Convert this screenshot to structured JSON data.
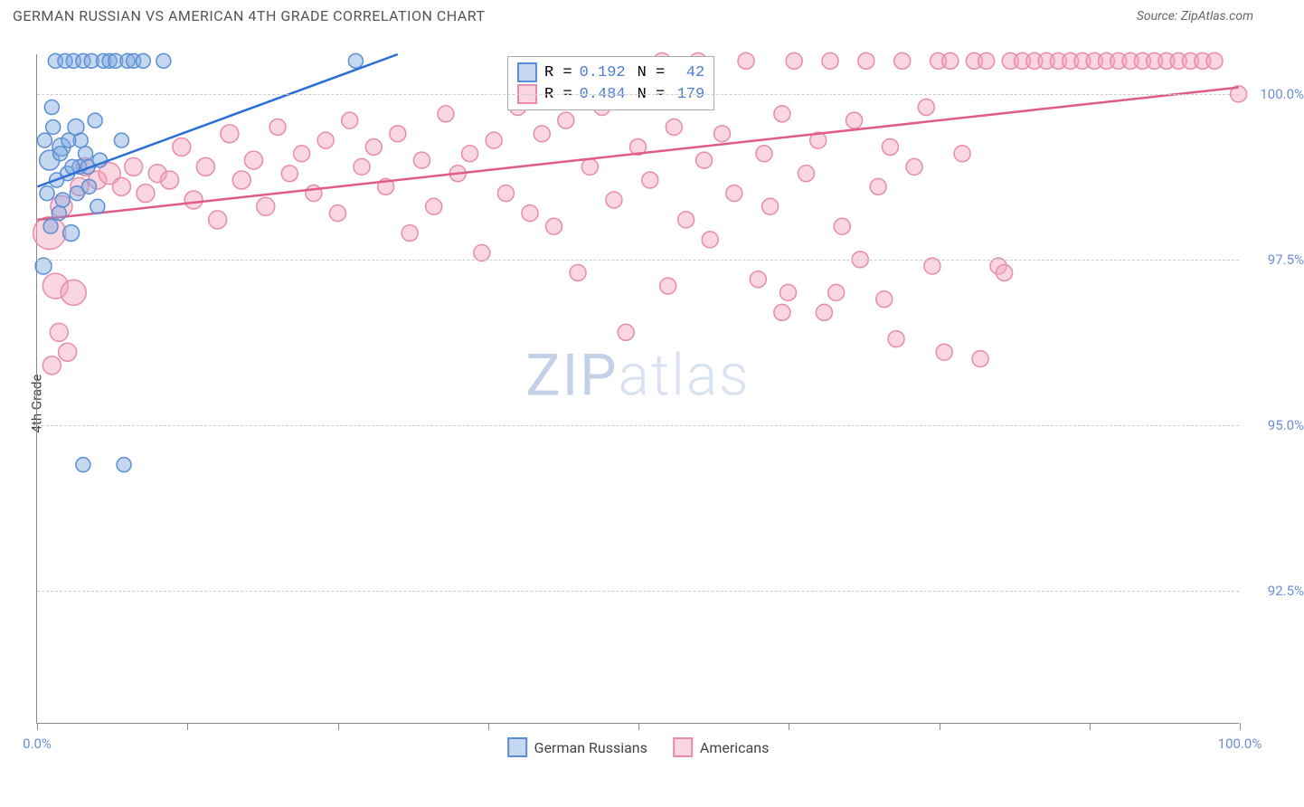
{
  "header": {
    "title": "GERMAN RUSSIAN VS AMERICAN 4TH GRADE CORRELATION CHART",
    "source": "Source: ZipAtlas.com"
  },
  "watermark": {
    "bold": "ZIP",
    "light": "atlas"
  },
  "chart": {
    "type": "scatter",
    "ylabel": "4th Grade",
    "xlim": [
      0,
      100
    ],
    "ylim": [
      90.5,
      100.6
    ],
    "background_color": "#ffffff",
    "grid_color": "#cccccc",
    "axis_color": "#888888",
    "ytick_label_color": "#6b8fd4",
    "xtick_label_color": "#6b8fd4",
    "yticks": [
      {
        "v": 92.5,
        "label": "92.5%"
      },
      {
        "v": 95.0,
        "label": "95.0%"
      },
      {
        "v": 97.5,
        "label": "97.5%"
      },
      {
        "v": 100.0,
        "label": "100.0%"
      }
    ],
    "xticks_minor": [
      0,
      12.5,
      25,
      37.5,
      50,
      62.5,
      75,
      87.5,
      100
    ],
    "xticks_labeled": [
      {
        "v": 0,
        "label": "0.0%"
      },
      {
        "v": 100,
        "label": "100.0%"
      }
    ],
    "series": {
      "gr": {
        "label": "German Russians",
        "marker_stroke": "#5a8fd6",
        "marker_fill": "rgba(126,169,222,0.45)",
        "line_color": "#2a6fd6",
        "line_width": 2.5,
        "R": "0.192",
        "N": "42",
        "trend": {
          "x1": 0,
          "y1": 98.6,
          "x2": 30,
          "y2": 100.6
        },
        "points": [
          {
            "x": 0.5,
            "y": 97.4,
            "r": 9
          },
          {
            "x": 0.8,
            "y": 98.5,
            "r": 8
          },
          {
            "x": 1.0,
            "y": 99.0,
            "r": 11
          },
          {
            "x": 1.2,
            "y": 99.8,
            "r": 8
          },
          {
            "x": 1.5,
            "y": 100.5,
            "r": 8
          },
          {
            "x": 1.8,
            "y": 98.2,
            "r": 8
          },
          {
            "x": 2.0,
            "y": 99.2,
            "r": 10
          },
          {
            "x": 2.3,
            "y": 100.5,
            "r": 8
          },
          {
            "x": 2.5,
            "y": 98.8,
            "r": 8
          },
          {
            "x": 2.8,
            "y": 97.9,
            "r": 9
          },
          {
            "x": 3.0,
            "y": 100.5,
            "r": 8
          },
          {
            "x": 3.2,
            "y": 99.5,
            "r": 9
          },
          {
            "x": 3.5,
            "y": 98.9,
            "r": 8
          },
          {
            "x": 3.8,
            "y": 100.5,
            "r": 8
          },
          {
            "x": 4.0,
            "y": 99.1,
            "r": 8
          },
          {
            "x": 4.3,
            "y": 98.6,
            "r": 8
          },
          {
            "x": 4.5,
            "y": 100.5,
            "r": 8
          },
          {
            "x": 4.8,
            "y": 99.6,
            "r": 8
          },
          {
            "x": 5.0,
            "y": 98.3,
            "r": 8
          },
          {
            "x": 5.5,
            "y": 100.5,
            "r": 8
          },
          {
            "x": 6.0,
            "y": 100.5,
            "r": 8
          },
          {
            "x": 6.5,
            "y": 100.5,
            "r": 8
          },
          {
            "x": 7.0,
            "y": 99.3,
            "r": 8
          },
          {
            "x": 7.5,
            "y": 100.5,
            "r": 8
          },
          {
            "x": 8.0,
            "y": 100.5,
            "r": 8
          },
          {
            "x": 8.8,
            "y": 100.5,
            "r": 8
          },
          {
            "x": 10.5,
            "y": 100.5,
            "r": 8
          },
          {
            "x": 3.8,
            "y": 94.4,
            "r": 8
          },
          {
            "x": 7.2,
            "y": 94.4,
            "r": 8
          },
          {
            "x": 0.6,
            "y": 99.3,
            "r": 8
          },
          {
            "x": 1.1,
            "y": 98.0,
            "r": 8
          },
          {
            "x": 1.3,
            "y": 99.5,
            "r": 8
          },
          {
            "x": 1.6,
            "y": 98.7,
            "r": 8
          },
          {
            "x": 1.9,
            "y": 99.1,
            "r": 8
          },
          {
            "x": 2.1,
            "y": 98.4,
            "r": 8
          },
          {
            "x": 2.6,
            "y": 99.3,
            "r": 8
          },
          {
            "x": 2.9,
            "y": 98.9,
            "r": 8
          },
          {
            "x": 3.3,
            "y": 98.5,
            "r": 8
          },
          {
            "x": 3.6,
            "y": 99.3,
            "r": 8
          },
          {
            "x": 4.2,
            "y": 98.9,
            "r": 8
          },
          {
            "x": 5.2,
            "y": 99.0,
            "r": 8
          },
          {
            "x": 26.5,
            "y": 100.5,
            "r": 8
          }
        ]
      },
      "am": {
        "label": "Americans",
        "marker_stroke": "#e88ca8",
        "marker_fill": "rgba(244,164,189,0.45)",
        "line_color": "#e05a8a",
        "line_width": 2.5,
        "R": "0.484",
        "N": "179",
        "trend": {
          "x1": 0,
          "y1": 98.1,
          "x2": 100,
          "y2": 100.1
        },
        "points": [
          {
            "x": 1.0,
            "y": 97.9,
            "r": 18
          },
          {
            "x": 1.5,
            "y": 97.1,
            "r": 14
          },
          {
            "x": 2.0,
            "y": 98.3,
            "r": 12
          },
          {
            "x": 2.5,
            "y": 96.1,
            "r": 10
          },
          {
            "x": 3.0,
            "y": 97.0,
            "r": 14
          },
          {
            "x": 3.5,
            "y": 98.6,
            "r": 10
          },
          {
            "x": 4.0,
            "y": 98.9,
            "r": 10
          },
          {
            "x": 5.0,
            "y": 98.7,
            "r": 10
          },
          {
            "x": 6.0,
            "y": 98.8,
            "r": 12
          },
          {
            "x": 7.0,
            "y": 98.6,
            "r": 10
          },
          {
            "x": 8.0,
            "y": 98.9,
            "r": 10
          },
          {
            "x": 9.0,
            "y": 98.5,
            "r": 10
          },
          {
            "x": 10.0,
            "y": 98.8,
            "r": 10
          },
          {
            "x": 11.0,
            "y": 98.7,
            "r": 10
          },
          {
            "x": 12.0,
            "y": 99.2,
            "r": 10
          },
          {
            "x": 13.0,
            "y": 98.4,
            "r": 10
          },
          {
            "x": 14.0,
            "y": 98.9,
            "r": 10
          },
          {
            "x": 15.0,
            "y": 98.1,
            "r": 10
          },
          {
            "x": 16.0,
            "y": 99.4,
            "r": 10
          },
          {
            "x": 17.0,
            "y": 98.7,
            "r": 10
          },
          {
            "x": 18.0,
            "y": 99.0,
            "r": 10
          },
          {
            "x": 19.0,
            "y": 98.3,
            "r": 10
          },
          {
            "x": 20.0,
            "y": 99.5,
            "r": 9
          },
          {
            "x": 21.0,
            "y": 98.8,
            "r": 9
          },
          {
            "x": 22.0,
            "y": 99.1,
            "r": 9
          },
          {
            "x": 23.0,
            "y": 98.5,
            "r": 9
          },
          {
            "x": 24.0,
            "y": 99.3,
            "r": 9
          },
          {
            "x": 25.0,
            "y": 98.2,
            "r": 9
          },
          {
            "x": 26.0,
            "y": 99.6,
            "r": 9
          },
          {
            "x": 27.0,
            "y": 98.9,
            "r": 9
          },
          {
            "x": 28.0,
            "y": 99.2,
            "r": 9
          },
          {
            "x": 29.0,
            "y": 98.6,
            "r": 9
          },
          {
            "x": 30.0,
            "y": 99.4,
            "r": 9
          },
          {
            "x": 31.0,
            "y": 97.9,
            "r": 9
          },
          {
            "x": 32.0,
            "y": 99.0,
            "r": 9
          },
          {
            "x": 33.0,
            "y": 98.3,
            "r": 9
          },
          {
            "x": 34.0,
            "y": 99.7,
            "r": 9
          },
          {
            "x": 35.0,
            "y": 98.8,
            "r": 9
          },
          {
            "x": 36.0,
            "y": 99.1,
            "r": 9
          },
          {
            "x": 37.0,
            "y": 97.6,
            "r": 9
          },
          {
            "x": 38.0,
            "y": 99.3,
            "r": 9
          },
          {
            "x": 39.0,
            "y": 98.5,
            "r": 9
          },
          {
            "x": 40.0,
            "y": 99.8,
            "r": 9
          },
          {
            "x": 41.0,
            "y": 98.2,
            "r": 9
          },
          {
            "x": 42.0,
            "y": 99.4,
            "r": 9
          },
          {
            "x": 43.0,
            "y": 98.0,
            "r": 9
          },
          {
            "x": 44.0,
            "y": 99.6,
            "r": 9
          },
          {
            "x": 45.0,
            "y": 97.3,
            "r": 9
          },
          {
            "x": 46.0,
            "y": 98.9,
            "r": 9
          },
          {
            "x": 47.0,
            "y": 99.8,
            "r": 9
          },
          {
            "x": 48.0,
            "y": 98.4,
            "r": 9
          },
          {
            "x": 49.0,
            "y": 96.4,
            "r": 9
          },
          {
            "x": 50.0,
            "y": 99.2,
            "r": 9
          },
          {
            "x": 51.0,
            "y": 98.7,
            "r": 9
          },
          {
            "x": 52.0,
            "y": 100.5,
            "r": 9
          },
          {
            "x": 52.5,
            "y": 97.1,
            "r": 9
          },
          {
            "x": 53.0,
            "y": 99.5,
            "r": 9
          },
          {
            "x": 54.0,
            "y": 98.1,
            "r": 9
          },
          {
            "x": 55.0,
            "y": 100.5,
            "r": 9
          },
          {
            "x": 55.5,
            "y": 99.0,
            "r": 9
          },
          {
            "x": 56.0,
            "y": 97.8,
            "r": 9
          },
          {
            "x": 57.0,
            "y": 99.4,
            "r": 9
          },
          {
            "x": 58.0,
            "y": 98.5,
            "r": 9
          },
          {
            "x": 59.0,
            "y": 100.5,
            "r": 9
          },
          {
            "x": 60.0,
            "y": 97.2,
            "r": 9
          },
          {
            "x": 60.5,
            "y": 99.1,
            "r": 9
          },
          {
            "x": 61.0,
            "y": 98.3,
            "r": 9
          },
          {
            "x": 62.0,
            "y": 99.7,
            "r": 9
          },
          {
            "x": 62.5,
            "y": 97.0,
            "r": 9
          },
          {
            "x": 63.0,
            "y": 100.5,
            "r": 9
          },
          {
            "x": 64.0,
            "y": 98.8,
            "r": 9
          },
          {
            "x": 65.0,
            "y": 99.3,
            "r": 9
          },
          {
            "x": 65.5,
            "y": 96.7,
            "r": 9
          },
          {
            "x": 66.0,
            "y": 100.5,
            "r": 9
          },
          {
            "x": 67.0,
            "y": 98.0,
            "r": 9
          },
          {
            "x": 68.0,
            "y": 99.6,
            "r": 9
          },
          {
            "x": 68.5,
            "y": 97.5,
            "r": 9
          },
          {
            "x": 69.0,
            "y": 100.5,
            "r": 9
          },
          {
            "x": 70.0,
            "y": 98.6,
            "r": 9
          },
          {
            "x": 71.0,
            "y": 99.2,
            "r": 9
          },
          {
            "x": 71.5,
            "y": 96.3,
            "r": 9
          },
          {
            "x": 72.0,
            "y": 100.5,
            "r": 9
          },
          {
            "x": 73.0,
            "y": 98.9,
            "r": 9
          },
          {
            "x": 74.0,
            "y": 99.8,
            "r": 9
          },
          {
            "x": 74.5,
            "y": 97.4,
            "r": 9
          },
          {
            "x": 75.0,
            "y": 100.5,
            "r": 9
          },
          {
            "x": 76.0,
            "y": 100.5,
            "r": 9
          },
          {
            "x": 77.0,
            "y": 99.1,
            "r": 9
          },
          {
            "x": 78.0,
            "y": 100.5,
            "r": 9
          },
          {
            "x": 78.5,
            "y": 96.0,
            "r": 9
          },
          {
            "x": 79.0,
            "y": 100.5,
            "r": 9
          },
          {
            "x": 80.0,
            "y": 97.4,
            "r": 9
          },
          {
            "x": 81.0,
            "y": 100.5,
            "r": 9
          },
          {
            "x": 82.0,
            "y": 100.5,
            "r": 9
          },
          {
            "x": 83.0,
            "y": 100.5,
            "r": 9
          },
          {
            "x": 84.0,
            "y": 100.5,
            "r": 9
          },
          {
            "x": 85.0,
            "y": 100.5,
            "r": 9
          },
          {
            "x": 86.0,
            "y": 100.5,
            "r": 9
          },
          {
            "x": 87.0,
            "y": 100.5,
            "r": 9
          },
          {
            "x": 88.0,
            "y": 100.5,
            "r": 9
          },
          {
            "x": 89.0,
            "y": 100.5,
            "r": 9
          },
          {
            "x": 90.0,
            "y": 100.5,
            "r": 9
          },
          {
            "x": 91.0,
            "y": 100.5,
            "r": 9
          },
          {
            "x": 92.0,
            "y": 100.5,
            "r": 9
          },
          {
            "x": 93.0,
            "y": 100.5,
            "r": 9
          },
          {
            "x": 94.0,
            "y": 100.5,
            "r": 9
          },
          {
            "x": 95.0,
            "y": 100.5,
            "r": 9
          },
          {
            "x": 96.0,
            "y": 100.5,
            "r": 9
          },
          {
            "x": 97.0,
            "y": 100.5,
            "r": 9
          },
          {
            "x": 98.0,
            "y": 100.5,
            "r": 9
          },
          {
            "x": 100.0,
            "y": 100.0,
            "r": 9
          },
          {
            "x": 1.2,
            "y": 95.9,
            "r": 10
          },
          {
            "x": 1.8,
            "y": 96.4,
            "r": 10
          },
          {
            "x": 62.0,
            "y": 96.7,
            "r": 9
          },
          {
            "x": 66.5,
            "y": 97.0,
            "r": 9
          },
          {
            "x": 70.5,
            "y": 96.9,
            "r": 9
          },
          {
            "x": 80.5,
            "y": 97.3,
            "r": 9
          },
          {
            "x": 75.5,
            "y": 96.1,
            "r": 9
          }
        ]
      }
    },
    "legend_top": {
      "R_label": "R =",
      "N_label": "N =",
      "value_color": "#4a7fd0"
    }
  }
}
